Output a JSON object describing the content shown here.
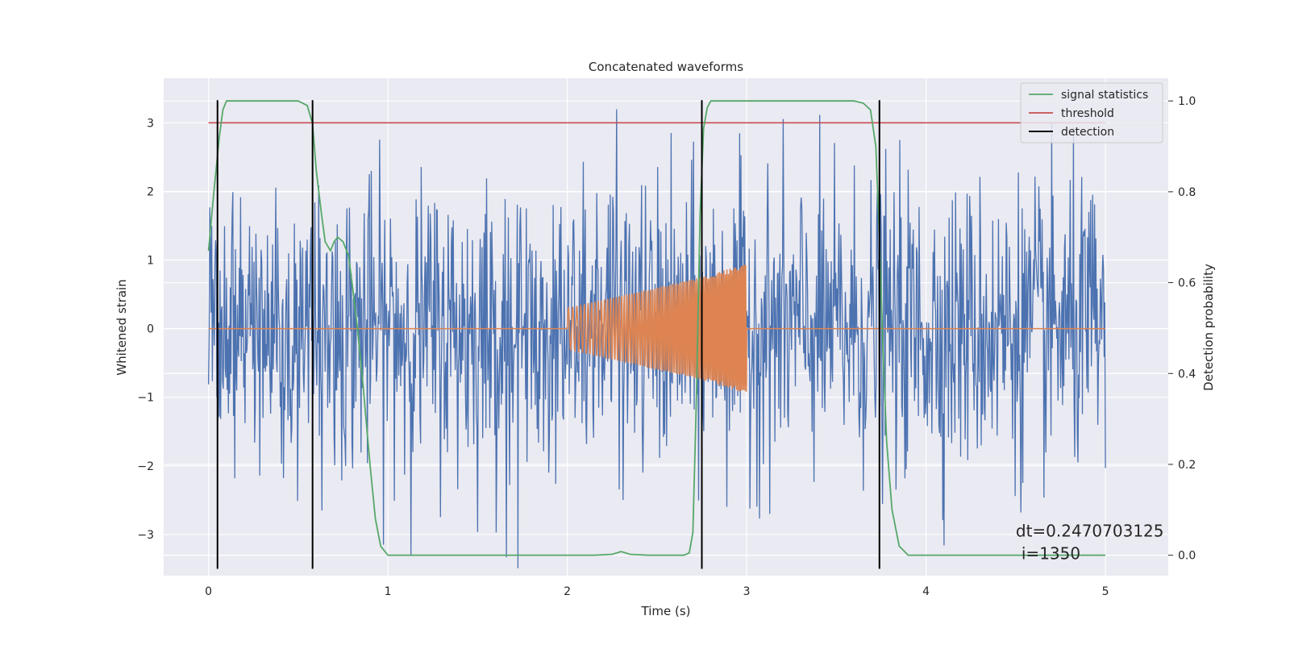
{
  "chart_data": {
    "type": "line",
    "title": "Concatenated waveforms",
    "xlabel": "Time (s)",
    "ylabel_left": "Whitened strain",
    "ylabel_right": "Detection probability",
    "xlim": [
      -0.25,
      5.35
    ],
    "ylim_left": [
      -3.6,
      3.65
    ],
    "ylim_right": [
      -0.045,
      1.05
    ],
    "x_ticks": [
      0,
      1,
      2,
      3,
      4,
      5
    ],
    "x_tick_labels": [
      "0",
      "1",
      "2",
      "3",
      "4",
      "5"
    ],
    "y_left_ticks": [
      -3,
      -2,
      -1,
      0,
      1,
      2,
      3
    ],
    "y_left_tick_labels": [
      "−3",
      "−2",
      "−1",
      "0",
      "1",
      "2",
      "3"
    ],
    "y_right_ticks": [
      0.0,
      0.2,
      0.4,
      0.6,
      0.8,
      1.0
    ],
    "y_right_tick_labels": [
      "0.0",
      "0.2",
      "0.4",
      "0.6",
      "0.8",
      "1.0"
    ],
    "grid": true,
    "legend_position": "top-right",
    "colors": {
      "background": "#eaeaf2",
      "grid": "#ffffff",
      "strain": "#4c72b0",
      "injection": "#dd8452",
      "signal_statistics": "#55a868",
      "threshold": "#c44e52",
      "detection": "#000000"
    },
    "series": [
      {
        "name": "",
        "axis": "left",
        "kind": "noise",
        "x_range": [
          0,
          5
        ],
        "amplitude_range": [
          -3.5,
          3.3
        ]
      },
      {
        "name": "",
        "axis": "left",
        "kind": "chirp",
        "x": [
          2.0,
          2.25,
          2.5,
          2.75,
          3.0
        ],
        "envelope": [
          0.3,
          0.45,
          0.6,
          0.75,
          0.95
        ],
        "outside_value": 0
      },
      {
        "name": "signal statistics",
        "axis": "right",
        "x": [
          0.0,
          0.03,
          0.06,
          0.08,
          0.1,
          0.15,
          0.5,
          0.55,
          0.58,
          0.6,
          0.63,
          0.65,
          0.68,
          0.7,
          0.72,
          0.75,
          0.78,
          0.8,
          0.83,
          0.86,
          0.9,
          0.93,
          0.96,
          1.0,
          2.15,
          2.25,
          2.3,
          2.35,
          2.45,
          2.65,
          2.68,
          2.7,
          2.72,
          2.74,
          2.76,
          2.78,
          2.8,
          2.85,
          3.6,
          3.65,
          3.69,
          3.72,
          3.74,
          3.76,
          3.78,
          3.81,
          3.85,
          3.9,
          5.0
        ],
        "values": [
          0.67,
          0.8,
          0.92,
          0.98,
          1.0,
          1.0,
          1.0,
          0.99,
          0.95,
          0.85,
          0.75,
          0.69,
          0.67,
          0.69,
          0.7,
          0.69,
          0.66,
          0.6,
          0.5,
          0.38,
          0.2,
          0.08,
          0.02,
          0.0,
          0.0,
          0.002,
          0.008,
          0.002,
          0.0,
          0.0,
          0.005,
          0.05,
          0.35,
          0.75,
          0.94,
          0.985,
          1.0,
          1.0,
          1.0,
          0.995,
          0.98,
          0.9,
          0.7,
          0.45,
          0.25,
          0.1,
          0.02,
          0.0,
          0.0
        ]
      },
      {
        "name": "threshold",
        "axis": "left",
        "x": [
          0.0,
          5.0
        ],
        "values": [
          3.0,
          3.0
        ]
      }
    ],
    "detections": {
      "name": "detection",
      "x": [
        0.05,
        0.58,
        2.75,
        3.74
      ],
      "y_range": [
        -3.5,
        3.33
      ]
    },
    "annotation": {
      "line1": "dt=0.2470703125",
      "line2": "i=1350",
      "x": 4.5,
      "y": -2.95
    }
  }
}
